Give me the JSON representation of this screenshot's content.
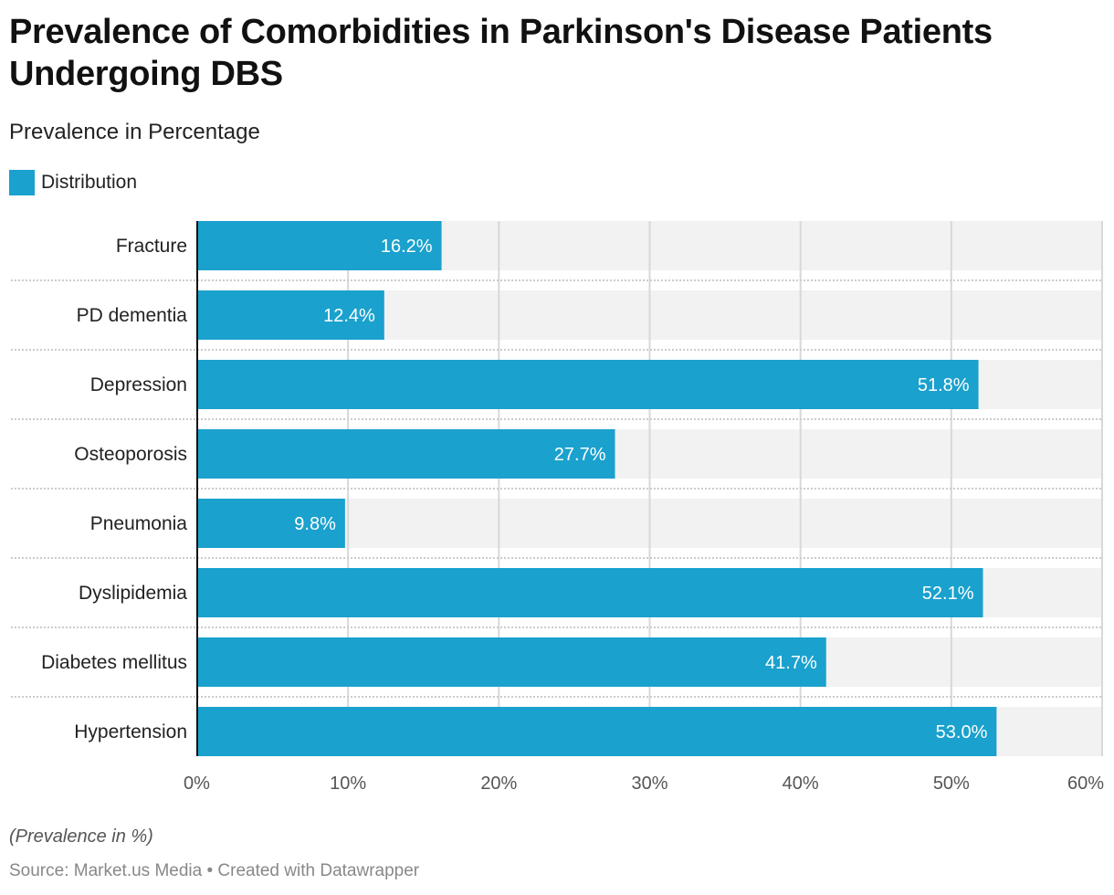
{
  "header": {
    "title": "Prevalence of Comorbidities in Parkinson's Disease Patients Undergoing DBS",
    "subtitle": "Prevalence in Percentage"
  },
  "legend": {
    "label": "Distribution",
    "color": "#1aa1cd"
  },
  "footer": {
    "note": "(Prevalence in %)",
    "source": "Source: Market.us Media • Created with Datawrapper"
  },
  "colors": {
    "bar": "#1aa1cd",
    "track": "#f2f2f2",
    "grid": "#d8d8d8",
    "axis": "#111111"
  },
  "chart_data": {
    "type": "bar",
    "orientation": "horizontal",
    "title": "Prevalence of Comorbidities in Parkinson's Disease Patients Undergoing DBS",
    "subtitle": "Prevalence in Percentage",
    "xlabel": "",
    "ylabel": "",
    "xlim": [
      0,
      60
    ],
    "grid": true,
    "legend_position": "top-left",
    "categories": [
      "Fracture",
      "PD dementia",
      "Depression",
      "Osteoporosis",
      "Pneumonia",
      "Dyslipidemia",
      "Diabetes mellitus",
      "Hypertension"
    ],
    "series": [
      {
        "name": "Distribution",
        "values": [
          16.2,
          12.4,
          51.8,
          27.7,
          9.8,
          52.1,
          41.7,
          53.0
        ]
      }
    ],
    "value_labels": [
      "16.2%",
      "12.4%",
      "51.8%",
      "27.7%",
      "9.8%",
      "52.1%",
      "41.7%",
      "53.0%"
    ],
    "ticks": [
      0,
      10,
      20,
      30,
      40,
      50,
      60
    ],
    "tick_labels": [
      "0%",
      "10%",
      "20%",
      "30%",
      "40%",
      "50%",
      "60%"
    ]
  }
}
